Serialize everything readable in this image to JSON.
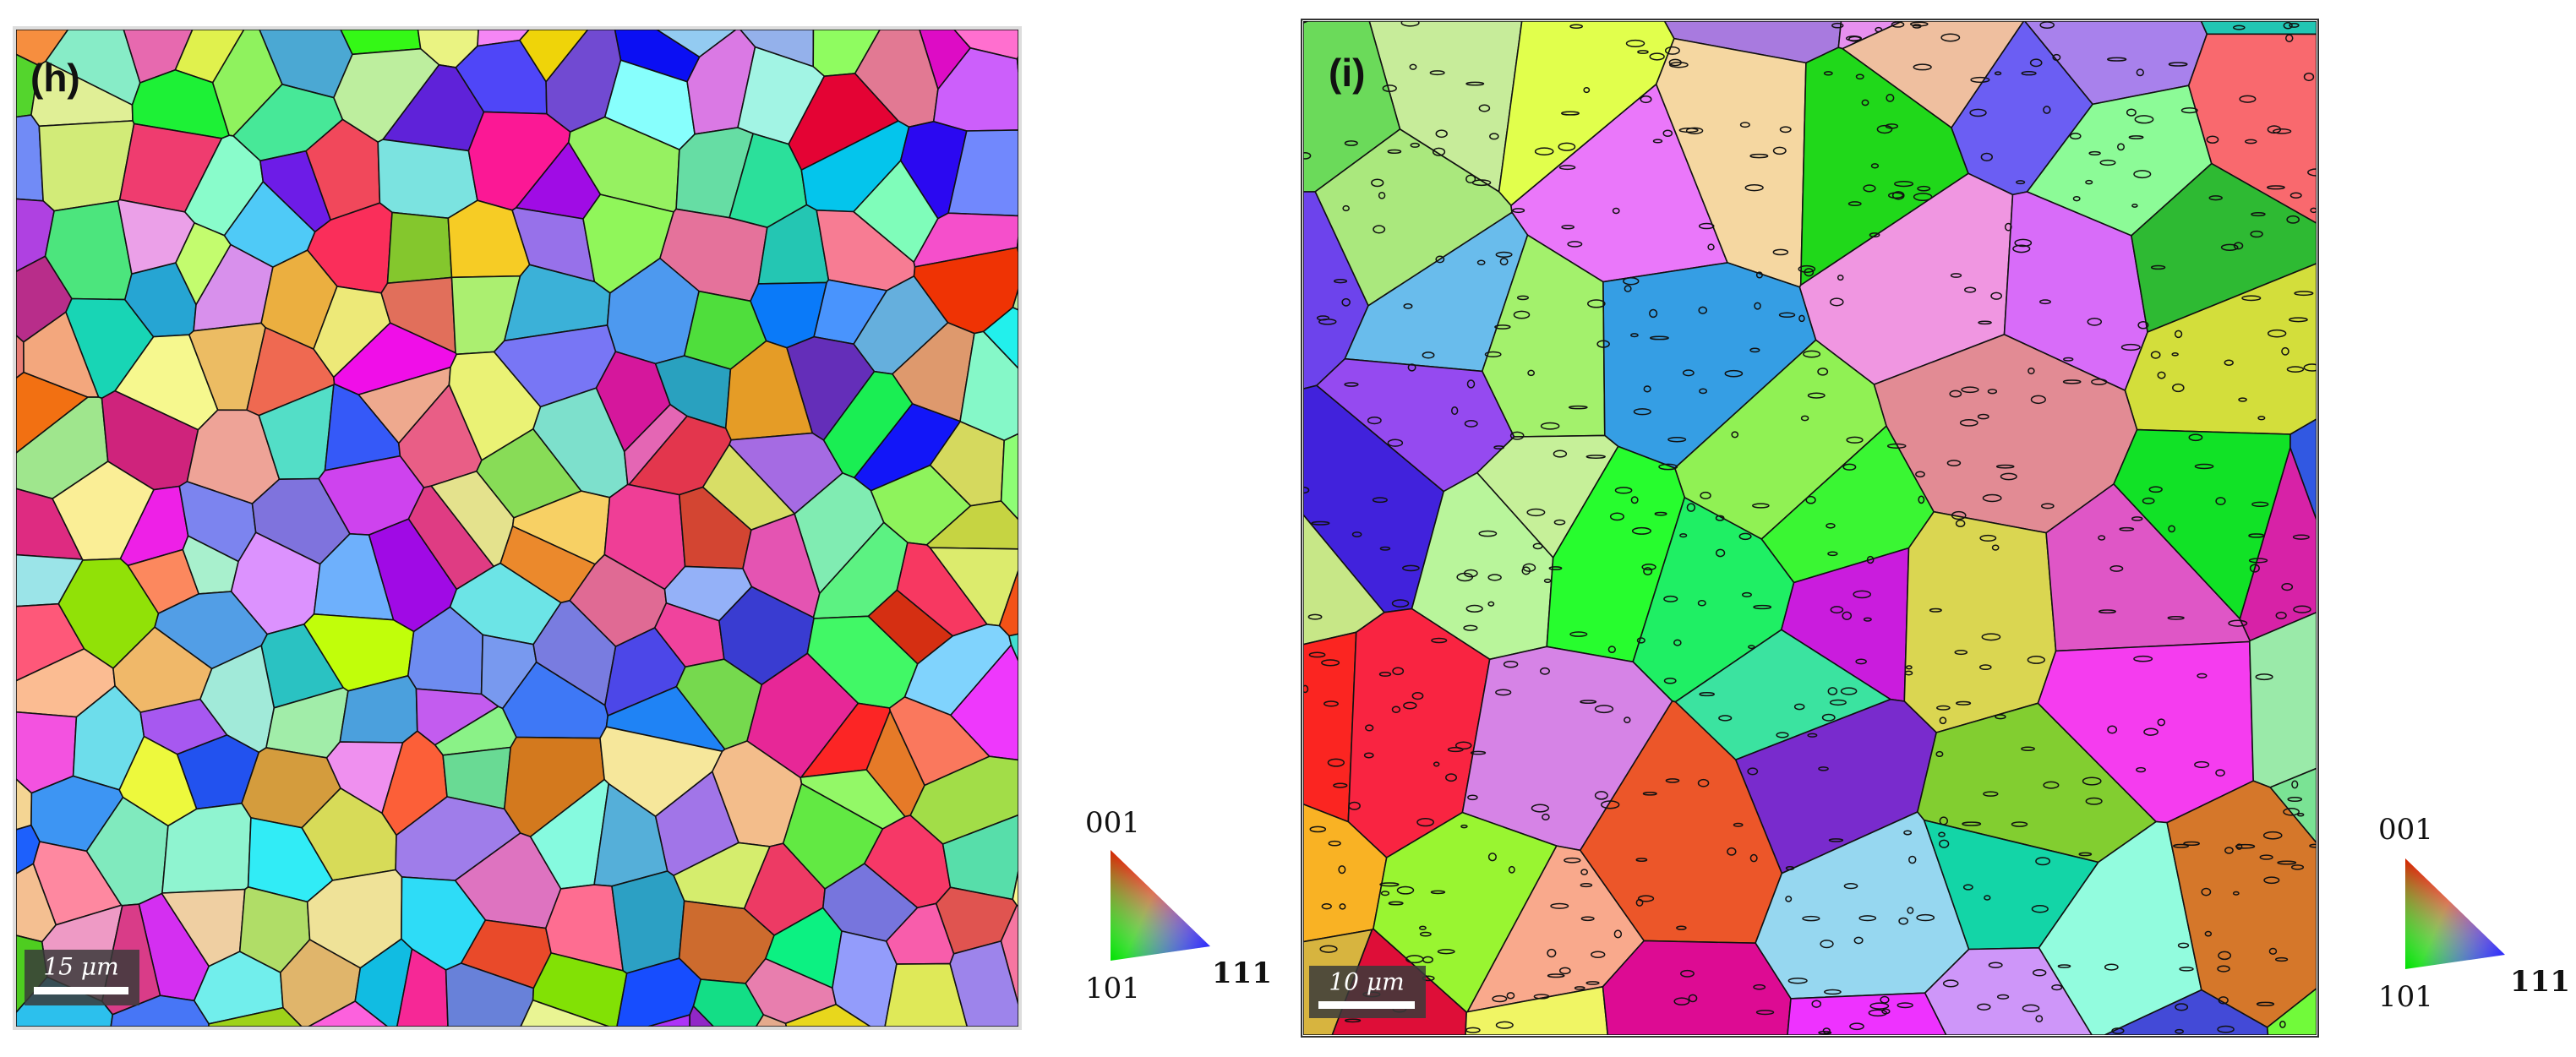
{
  "panels": [
    {
      "label": "(h)",
      "scale_bar": "15 μm",
      "legend": {
        "top": "001",
        "left": "101",
        "right": "111"
      }
    },
    {
      "label": "(i)",
      "scale_bar": "10 μm",
      "legend": {
        "top": "001",
        "left": "101",
        "right": "111"
      }
    }
  ]
}
